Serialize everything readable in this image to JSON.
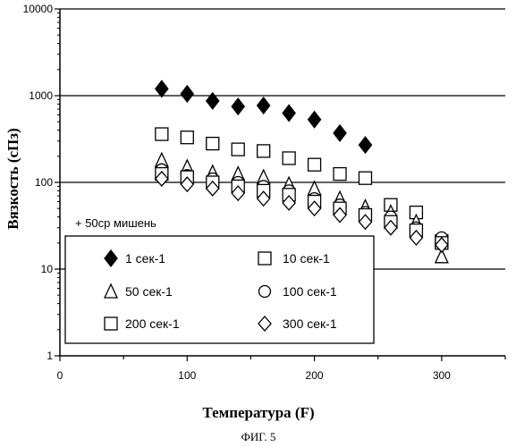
{
  "chart_data": {
    "type": "scatter",
    "title": "",
    "xlabel": "Температура (F)",
    "ylabel": "Вязкость (сПз)",
    "xlim": [
      0,
      350
    ],
    "ylim": [
      1,
      10000
    ],
    "yscale": "log",
    "xticks": [
      0,
      100,
      200,
      300
    ],
    "yticks": [
      1,
      10,
      100,
      1000,
      10000
    ],
    "xtick_labels": [
      "0",
      "100",
      "200",
      "300"
    ],
    "ytick_labels": [
      "1",
      "10",
      "100",
      "1000",
      "10000"
    ],
    "grid": "horizontal",
    "legend_title": "+ 50ср мишень",
    "legend_position": "lower-left",
    "series": [
      {
        "name": "1 сек-1",
        "marker": "diamond-filled",
        "x": [
          80,
          100,
          120,
          140,
          160,
          180,
          200,
          220,
          240
        ],
        "y": [
          1200,
          1050,
          870,
          750,
          770,
          630,
          530,
          370,
          270
        ]
      },
      {
        "name": "10 сек-1",
        "marker": "square",
        "x": [
          80,
          100,
          120,
          140,
          160,
          180,
          200,
          220,
          240,
          260,
          280,
          300
        ],
        "y": [
          360,
          330,
          280,
          240,
          230,
          190,
          160,
          125,
          112,
          55,
          45,
          21
        ]
      },
      {
        "name": "50 сек-1",
        "marker": "triangle",
        "x": [
          80,
          100,
          120,
          140,
          160,
          180,
          200,
          220,
          240,
          260,
          280,
          300
        ],
        "y": [
          180,
          150,
          130,
          125,
          115,
          95,
          85,
          65,
          52,
          45,
          35,
          14
        ]
      },
      {
        "name": "100 сек-1",
        "marker": "circle",
        "x": [
          80,
          100,
          120,
          140,
          160,
          180,
          200,
          220,
          240,
          260,
          280,
          300
        ],
        "y": [
          140,
          120,
          110,
          100,
          90,
          80,
          65,
          55,
          45,
          40,
          30,
          23
        ]
      },
      {
        "name": "200 сек-1",
        "marker": "square",
        "x": [
          80,
          100,
          120,
          140,
          160,
          180,
          200,
          220,
          240,
          260,
          280,
          300
        ],
        "y": [
          125,
          115,
          100,
          90,
          80,
          72,
          60,
          50,
          42,
          35,
          28,
          20
        ]
      },
      {
        "name": "300 сек-1",
        "marker": "diamond",
        "x": [
          80,
          100,
          120,
          140,
          160,
          180,
          200,
          220,
          240,
          260,
          280,
          300
        ],
        "y": [
          110,
          95,
          85,
          75,
          65,
          58,
          50,
          42,
          35,
          30,
          23,
          19
        ]
      }
    ]
  },
  "caption": "ФИГ. 5"
}
